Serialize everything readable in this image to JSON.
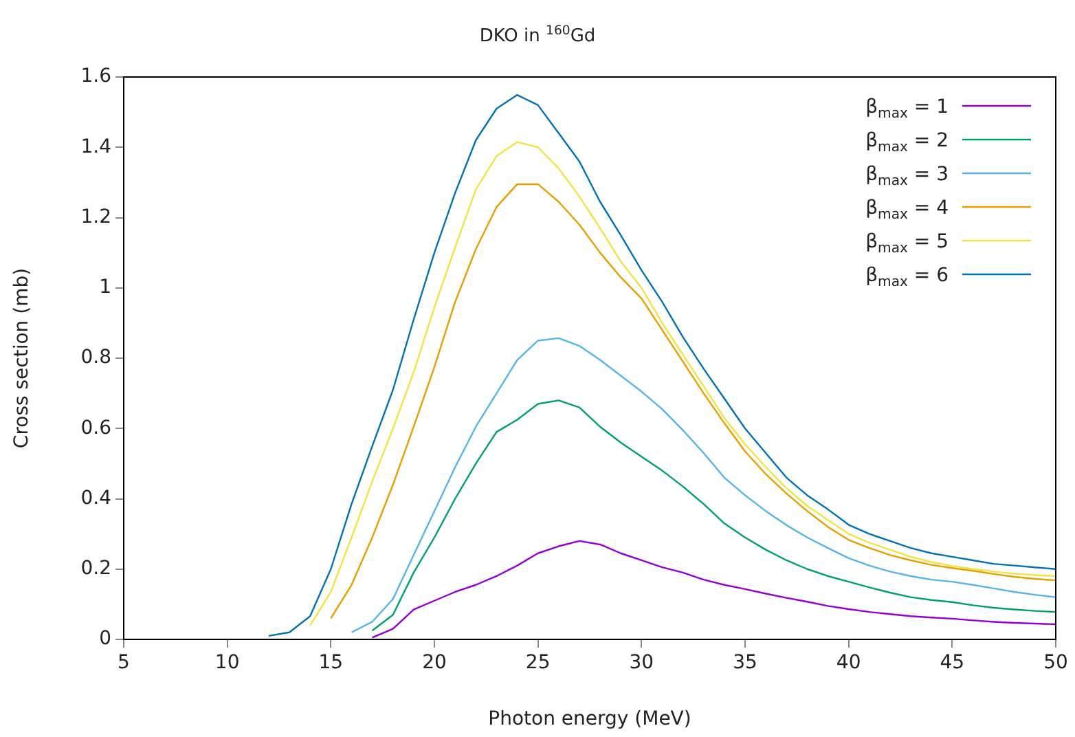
{
  "chart_data": {
    "type": "line",
    "title": "DKO in $^{160}$Gd",
    "xlabel": "Photon energy (MeV)",
    "ylabel": "Cross section (mb)",
    "x": [
      12,
      13,
      14,
      15,
      16,
      17,
      18,
      19,
      20,
      21,
      22,
      23,
      24,
      25,
      26,
      27,
      28,
      29,
      30,
      31,
      32,
      33,
      34,
      35,
      36,
      37,
      38,
      39,
      40,
      41,
      42,
      43,
      44,
      45,
      46,
      47,
      48,
      49,
      50
    ],
    "xlim": [
      5,
      50
    ],
    "xticks": [
      5,
      10,
      15,
      20,
      25,
      30,
      35,
      40,
      45,
      50
    ],
    "ylim": [
      0,
      1.6
    ],
    "yticks": [
      0,
      0.2,
      0.4,
      0.6,
      0.8,
      1,
      1.2,
      1.4,
      1.6
    ],
    "grid": false,
    "legend": "top right",
    "marker": "none",
    "line_style": "solid",
    "series": [
      {
        "name": "β$_{max}$ = 1",
        "color": "#9400d3",
        "x": [
          17,
          18,
          19,
          20,
          21,
          22,
          23,
          24,
          25,
          26,
          27,
          28,
          29,
          30,
          31,
          32,
          33,
          34,
          35,
          36,
          37,
          38,
          39,
          40,
          41,
          42,
          43,
          44,
          45,
          46,
          47,
          48,
          49,
          50
        ],
        "values": [
          0.005,
          0.03,
          0.085,
          0.11,
          0.135,
          0.155,
          0.18,
          0.21,
          0.245,
          0.265,
          0.28,
          0.27,
          0.245,
          0.225,
          0.205,
          0.19,
          0.17,
          0.155,
          0.143,
          0.13,
          0.118,
          0.107,
          0.095,
          0.086,
          0.078,
          0.072,
          0.066,
          0.062,
          0.059,
          0.054,
          0.05,
          0.047,
          0.045,
          0.043
        ]
      },
      {
        "name": "β$_{max}$ = 2",
        "color": "#009e73",
        "x": [
          17,
          18,
          19,
          20,
          21,
          22,
          23,
          24,
          25,
          26,
          27,
          28,
          29,
          30,
          31,
          32,
          33,
          34,
          35,
          36,
          37,
          38,
          39,
          40,
          41,
          42,
          43,
          44,
          45,
          46,
          47,
          48,
          49,
          50
        ],
        "values": [
          0.025,
          0.07,
          0.19,
          0.29,
          0.4,
          0.5,
          0.59,
          0.625,
          0.67,
          0.68,
          0.66,
          0.605,
          0.56,
          0.52,
          0.48,
          0.435,
          0.385,
          0.33,
          0.29,
          0.255,
          0.225,
          0.2,
          0.18,
          0.164,
          0.148,
          0.133,
          0.12,
          0.112,
          0.106,
          0.097,
          0.09,
          0.085,
          0.081,
          0.078
        ]
      },
      {
        "name": "β$_{max}$ = 3",
        "color": "#56b4e9",
        "x": [
          16,
          17,
          18,
          19,
          20,
          21,
          22,
          23,
          24,
          25,
          26,
          27,
          28,
          29,
          30,
          31,
          32,
          33,
          34,
          35,
          36,
          37,
          38,
          39,
          40,
          41,
          42,
          43,
          44,
          45,
          46,
          47,
          48,
          49,
          50
        ],
        "values": [
          0.02,
          0.05,
          0.115,
          0.24,
          0.365,
          0.49,
          0.605,
          0.7,
          0.795,
          0.85,
          0.857,
          0.835,
          0.795,
          0.75,
          0.705,
          0.655,
          0.595,
          0.53,
          0.46,
          0.41,
          0.365,
          0.325,
          0.29,
          0.26,
          0.231,
          0.21,
          0.193,
          0.18,
          0.17,
          0.164,
          0.155,
          0.145,
          0.135,
          0.127,
          0.12
        ]
      },
      {
        "name": "β$_{max}$ = 4",
        "color": "#e69f00",
        "x": [
          15,
          16,
          17,
          18,
          19,
          20,
          21,
          22,
          23,
          24,
          25,
          26,
          27,
          28,
          29,
          30,
          31,
          32,
          33,
          34,
          35,
          36,
          37,
          38,
          39,
          40,
          41,
          42,
          43,
          44,
          45,
          46,
          47,
          48,
          49,
          50
        ],
        "values": [
          0.06,
          0.155,
          0.29,
          0.44,
          0.605,
          0.775,
          0.96,
          1.11,
          1.23,
          1.295,
          1.295,
          1.245,
          1.18,
          1.1,
          1.03,
          0.97,
          0.88,
          0.79,
          0.7,
          0.615,
          0.535,
          0.47,
          0.415,
          0.365,
          0.32,
          0.283,
          0.26,
          0.24,
          0.225,
          0.212,
          0.203,
          0.195,
          0.186,
          0.178,
          0.172,
          0.168
        ]
      },
      {
        "name": "β$_{max}$ = 5",
        "color": "#f0e442",
        "x": [
          14,
          15,
          16,
          17,
          18,
          19,
          20,
          21,
          22,
          23,
          24,
          25,
          26,
          27,
          28,
          29,
          30,
          31,
          32,
          33,
          34,
          35,
          36,
          37,
          38,
          39,
          40,
          41,
          42,
          43,
          44,
          45,
          46,
          47,
          48,
          49,
          50
        ],
        "values": [
          0.04,
          0.135,
          0.29,
          0.45,
          0.6,
          0.76,
          0.945,
          1.115,
          1.28,
          1.375,
          1.415,
          1.4,
          1.34,
          1.26,
          1.17,
          1.075,
          1,
          0.9,
          0.81,
          0.72,
          0.63,
          0.555,
          0.49,
          0.43,
          0.38,
          0.34,
          0.3,
          0.275,
          0.255,
          0.235,
          0.22,
          0.209,
          0.2,
          0.193,
          0.187,
          0.183,
          0.18
        ]
      },
      {
        "name": "β$_{max}$ = 6",
        "color": "#0072b2",
        "values": [
          0.01,
          0.02,
          0.066,
          0.2,
          0.385,
          0.55,
          0.71,
          0.91,
          1.1,
          1.27,
          1.42,
          1.51,
          1.549,
          1.52,
          1.44,
          1.36,
          1.245,
          1.15,
          1.05,
          0.96,
          0.86,
          0.77,
          0.685,
          0.6,
          0.53,
          0.46,
          0.41,
          0.37,
          0.326,
          0.3,
          0.28,
          0.26,
          0.245,
          0.235,
          0.225,
          0.215,
          0.21,
          0.205,
          0.2
        ]
      }
    ]
  }
}
